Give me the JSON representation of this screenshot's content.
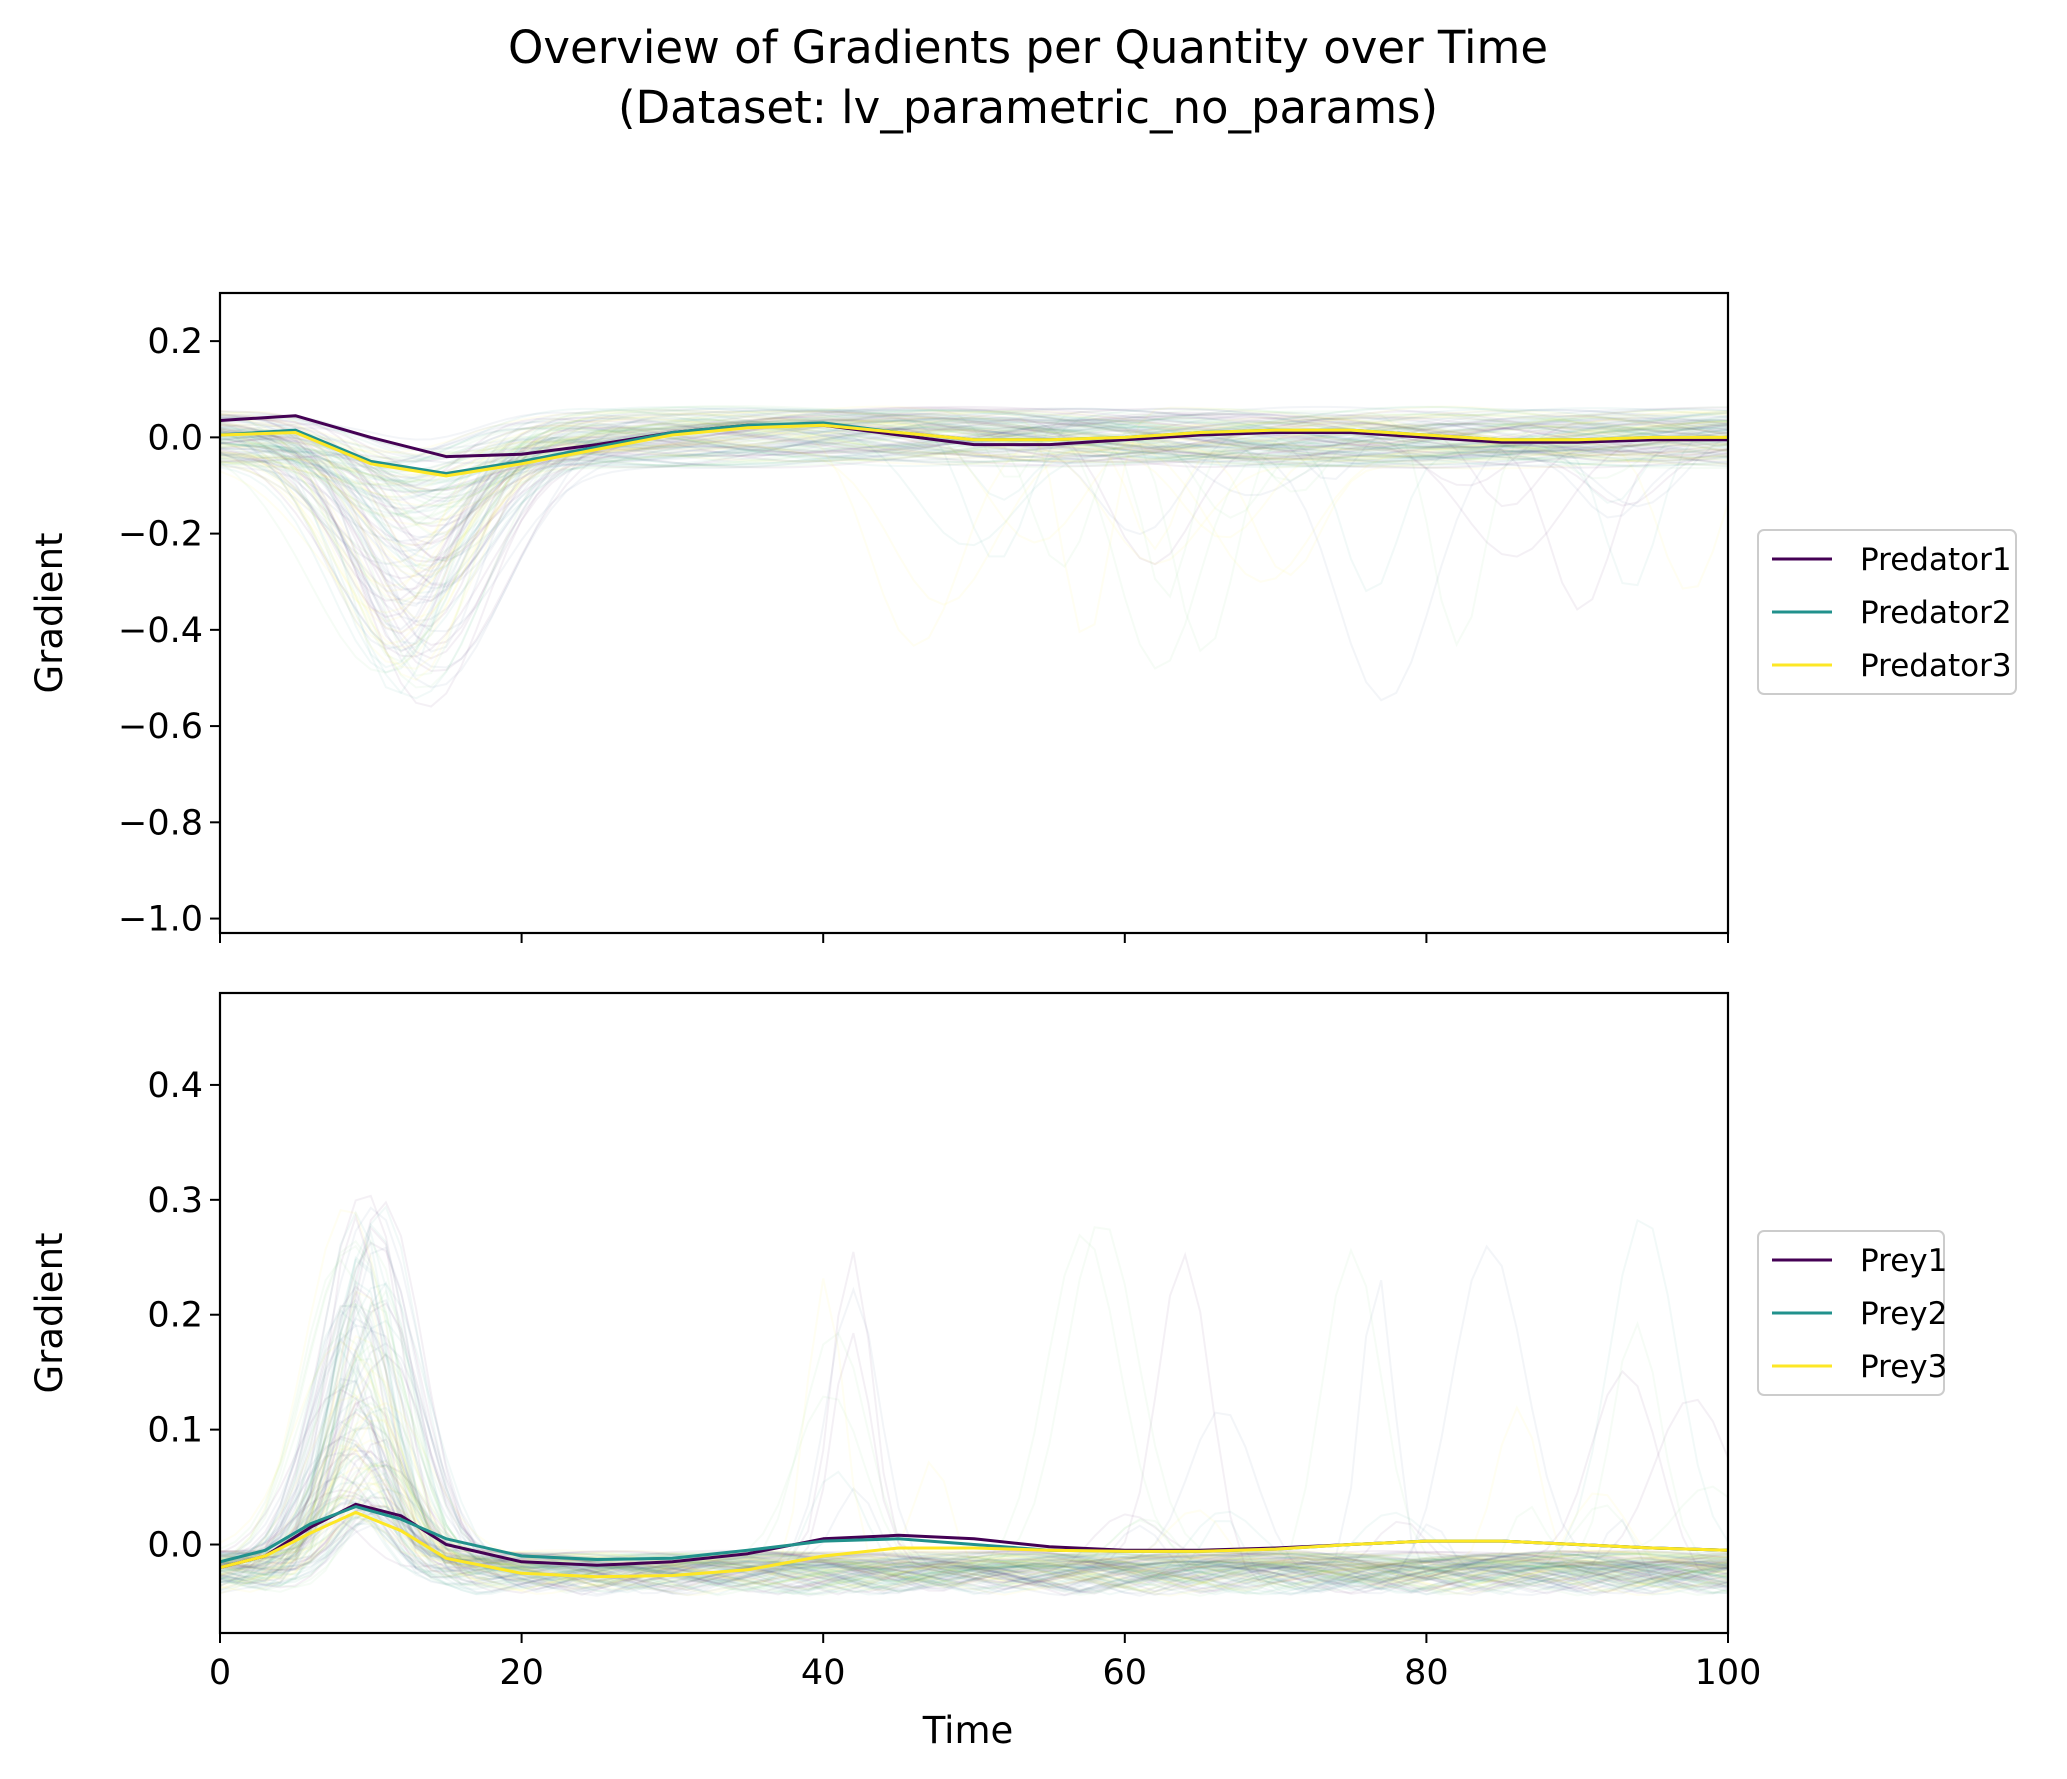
{
  "figure": {
    "title": "Overview of Gradients per Quantity over Time",
    "subtitle": "(Dataset: lv_parametric_no_params)",
    "xlabel": "Time"
  },
  "chart_data": [
    {
      "type": "line",
      "panel": "top",
      "ylabel": "Gradient",
      "xlim": [
        0,
        100
      ],
      "ylim": [
        -1.03,
        0.3
      ],
      "xticks": [
        0,
        20,
        40,
        60,
        80,
        100
      ],
      "yticks": [
        0.2,
        0.0,
        -0.2,
        -0.4,
        -0.6,
        -0.8,
        -1.0
      ],
      "ytick_labels": [
        "0.2",
        "0.0",
        "−0.2",
        "−0.4",
        "−0.6",
        "−0.8",
        "−1.0"
      ],
      "show_xtick_labels": false,
      "grid": false,
      "legend_position": "right-center",
      "series": [
        {
          "name": "Predator1",
          "color": "#440154",
          "x": [
            0,
            5,
            10,
            15,
            20,
            25,
            30,
            35,
            40,
            45,
            50,
            55,
            60,
            65,
            70,
            75,
            80,
            85,
            90,
            95,
            100
          ],
          "y": [
            0.035,
            0.045,
            0.0,
            -0.04,
            -0.035,
            -0.015,
            0.01,
            0.025,
            0.025,
            0.005,
            -0.015,
            -0.015,
            -0.005,
            0.005,
            0.01,
            0.01,
            0.0,
            -0.01,
            -0.01,
            -0.005,
            -0.005
          ]
        },
        {
          "name": "Predator2",
          "color": "#21918c",
          "x": [
            0,
            5,
            10,
            15,
            20,
            25,
            30,
            35,
            40,
            45,
            50,
            55,
            60,
            65,
            70,
            75,
            80,
            85,
            90,
            95,
            100
          ],
          "y": [
            0.005,
            0.015,
            -0.05,
            -0.075,
            -0.05,
            -0.02,
            0.01,
            0.025,
            0.03,
            0.01,
            -0.005,
            -0.005,
            0.0,
            0.01,
            0.015,
            0.015,
            0.005,
            -0.005,
            -0.005,
            0.0,
            0.0
          ]
        },
        {
          "name": "Predator3",
          "color": "#fde725",
          "x": [
            0,
            5,
            10,
            15,
            20,
            25,
            30,
            35,
            40,
            45,
            50,
            55,
            60,
            65,
            70,
            75,
            80,
            85,
            90,
            95,
            100
          ],
          "y": [
            0.005,
            0.01,
            -0.055,
            -0.08,
            -0.055,
            -0.025,
            0.005,
            0.02,
            0.025,
            0.01,
            -0.005,
            -0.005,
            0.0,
            0.01,
            0.015,
            0.015,
            0.005,
            -0.005,
            -0.005,
            0.0,
            0.0
          ]
        }
      ]
    },
    {
      "type": "line",
      "panel": "bottom",
      "ylabel": "Gradient",
      "xlabel": "Time",
      "xlim": [
        0,
        100
      ],
      "ylim": [
        -0.077,
        0.48
      ],
      "xticks": [
        0,
        20,
        40,
        60,
        80,
        100
      ],
      "yticks": [
        0.4,
        0.3,
        0.2,
        0.1,
        0.0
      ],
      "ytick_labels": [
        "0.4",
        "0.3",
        "0.2",
        "0.1",
        "0.0"
      ],
      "show_xtick_labels": true,
      "grid": false,
      "legend_position": "right-center",
      "series": [
        {
          "name": "Prey1",
          "color": "#440154",
          "x": [
            0,
            3,
            6,
            9,
            12,
            15,
            20,
            25,
            30,
            35,
            40,
            45,
            50,
            55,
            60,
            65,
            70,
            75,
            80,
            85,
            90,
            95,
            100
          ],
          "y": [
            -0.02,
            -0.01,
            0.015,
            0.035,
            0.025,
            0.0,
            -0.015,
            -0.018,
            -0.015,
            -0.008,
            0.005,
            0.008,
            0.005,
            -0.002,
            -0.005,
            -0.005,
            -0.003,
            0.0,
            0.003,
            0.003,
            0.0,
            -0.003,
            -0.005
          ]
        },
        {
          "name": "Prey2",
          "color": "#21918c",
          "x": [
            0,
            3,
            6,
            9,
            12,
            15,
            20,
            25,
            30,
            35,
            40,
            45,
            50,
            55,
            60,
            65,
            70,
            75,
            80,
            85,
            90,
            95,
            100
          ],
          "y": [
            -0.015,
            -0.005,
            0.018,
            0.033,
            0.022,
            0.005,
            -0.01,
            -0.013,
            -0.012,
            -0.005,
            0.003,
            0.005,
            0.0,
            -0.005,
            -0.006,
            -0.006,
            -0.004,
            0.0,
            0.003,
            0.003,
            0.0,
            -0.003,
            -0.005
          ]
        },
        {
          "name": "Prey3",
          "color": "#fde725",
          "x": [
            0,
            3,
            6,
            9,
            12,
            15,
            20,
            25,
            30,
            35,
            40,
            45,
            50,
            55,
            60,
            65,
            70,
            75,
            80,
            85,
            90,
            95,
            100
          ],
          "y": [
            -0.02,
            -0.01,
            0.01,
            0.028,
            0.012,
            -0.012,
            -0.025,
            -0.028,
            -0.027,
            -0.022,
            -0.01,
            -0.003,
            -0.003,
            -0.005,
            -0.006,
            -0.006,
            -0.004,
            0.0,
            0.003,
            0.003,
            0.0,
            -0.003,
            -0.005
          ]
        }
      ]
    }
  ]
}
